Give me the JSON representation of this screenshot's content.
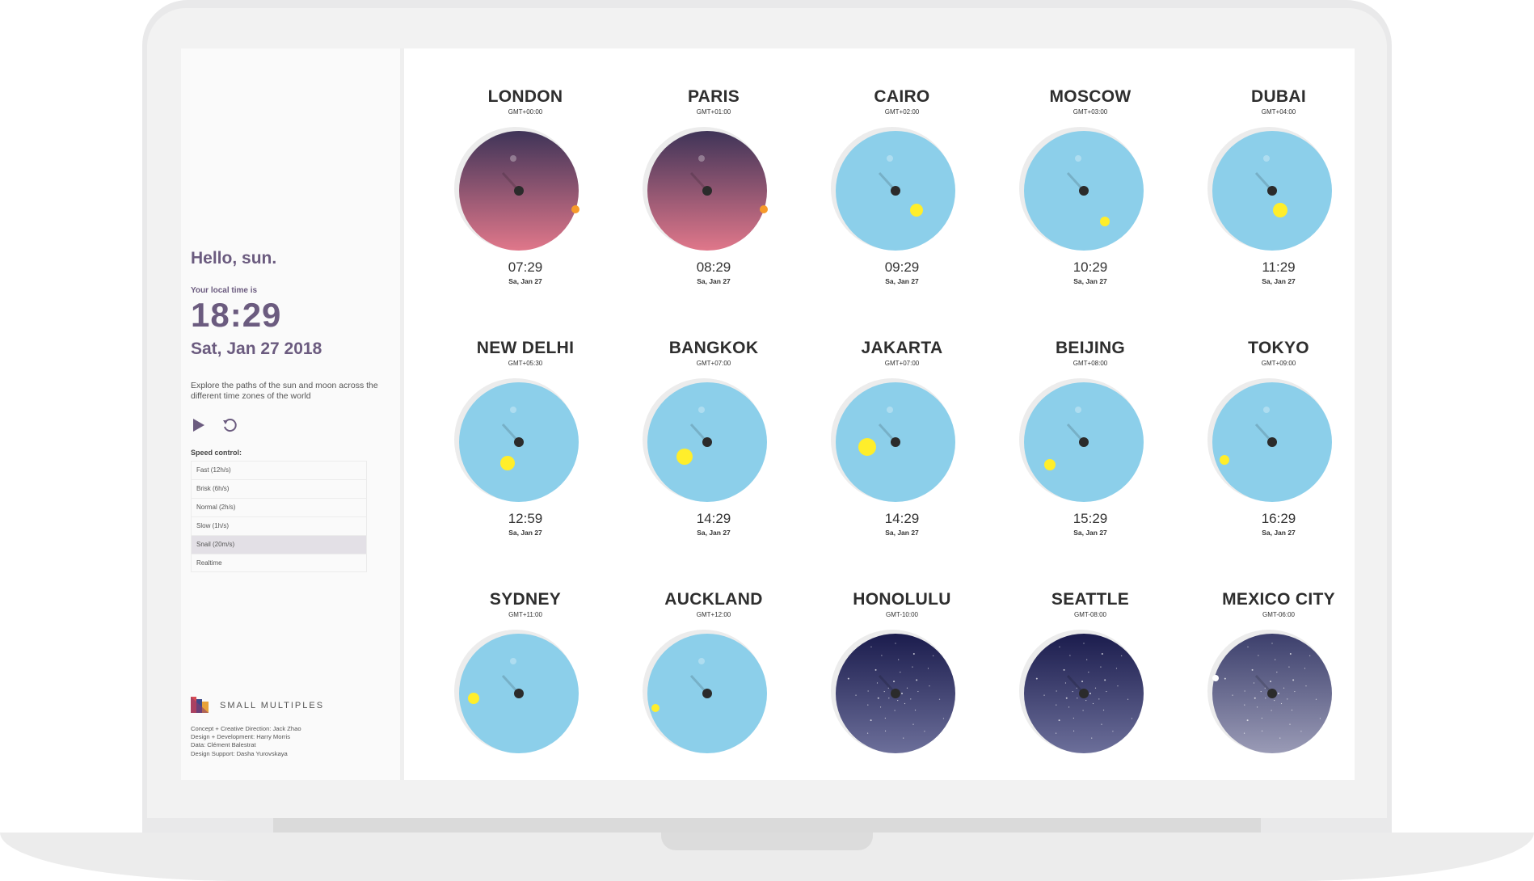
{
  "sidebar": {
    "greeting": "Hello, sun.",
    "local_label": "Your local time is",
    "local_time": "18:29",
    "local_date": "Sat, Jan 27 2018",
    "description": "Explore the paths of the sun and moon across the different time zones of the world",
    "speed_label": "Speed control:",
    "speed_options": [
      "Fast (12h/s)",
      "Brisk (6h/s)",
      "Normal (2h/s)",
      "Slow (1h/s)",
      "Snail (20m/s)",
      "Realtime"
    ],
    "speed_selected": "Snail (20m/s)",
    "brand": "SMALL MULTIPLES",
    "credits": [
      "Concept + Creative Direction: Jack Zhao",
      "Design + Development: Harry Morris",
      "Data: Clément Balestrat",
      "Design Support: Dasha Yurovskaya"
    ],
    "colors": {
      "accent": "#6b5b7f",
      "selected_bg": "#e3e0e6"
    },
    "icons": {
      "play": "play-icon",
      "reset": "reset-icon",
      "logo": "small-multiples-logo"
    }
  },
  "cities": [
    {
      "name": "LONDON",
      "gmt": "GMT+00:00",
      "time": "07:29",
      "date": "Sa, Jan 27",
      "sky": "dawn"
    },
    {
      "name": "PARIS",
      "gmt": "GMT+01:00",
      "time": "08:29",
      "date": "Sa, Jan 27",
      "sky": "dawn"
    },
    {
      "name": "CAIRO",
      "gmt": "GMT+02:00",
      "time": "09:29",
      "date": "Sa, Jan 27",
      "sky": "day"
    },
    {
      "name": "MOSCOW",
      "gmt": "GMT+03:00",
      "time": "10:29",
      "date": "Sa, Jan 27",
      "sky": "day"
    },
    {
      "name": "DUBAI",
      "gmt": "GMT+04:00",
      "time": "11:29",
      "date": "Sa, Jan 27",
      "sky": "day"
    },
    {
      "name": "NEW DELHI",
      "gmt": "GMT+05:30",
      "time": "12:59",
      "date": "Sa, Jan 27",
      "sky": "day"
    },
    {
      "name": "BANGKOK",
      "gmt": "GMT+07:00",
      "time": "14:29",
      "date": "Sa, Jan 27",
      "sky": "day"
    },
    {
      "name": "JAKARTA",
      "gmt": "GMT+07:00",
      "time": "14:29",
      "date": "Sa, Jan 27",
      "sky": "day"
    },
    {
      "name": "BEIJING",
      "gmt": "GMT+08:00",
      "time": "15:29",
      "date": "Sa, Jan 27",
      "sky": "day"
    },
    {
      "name": "TOKYO",
      "gmt": "GMT+09:00",
      "time": "16:29",
      "date": "Sa, Jan 27",
      "sky": "day"
    },
    {
      "name": "SYDNEY",
      "gmt": "GMT+11:00",
      "time": "",
      "date": "",
      "sky": "day"
    },
    {
      "name": "AUCKLAND",
      "gmt": "GMT+12:00",
      "time": "",
      "date": "",
      "sky": "day"
    },
    {
      "name": "HONOLULU",
      "gmt": "GMT-10:00",
      "time": "",
      "date": "",
      "sky": "night"
    },
    {
      "name": "SEATTLE",
      "gmt": "GMT-08:00",
      "time": "",
      "date": "",
      "sky": "night"
    },
    {
      "name": "MEXICO CITY",
      "gmt": "GMT-06:00",
      "time": "",
      "date": "",
      "sky": "dusk"
    }
  ],
  "sky_colors": {
    "day": "#8ccfea",
    "dawn_top": "#3f3458",
    "dawn_bottom": "#e0778a",
    "night_top": "#1b1c4d",
    "night_bottom": "#6c6f9a",
    "dusk_top": "#3c3f6c",
    "dusk_bottom": "#9a9bb6",
    "sun": "#ffee2b",
    "sun_low": "#f79a2a",
    "center": "#2b2b2b"
  }
}
